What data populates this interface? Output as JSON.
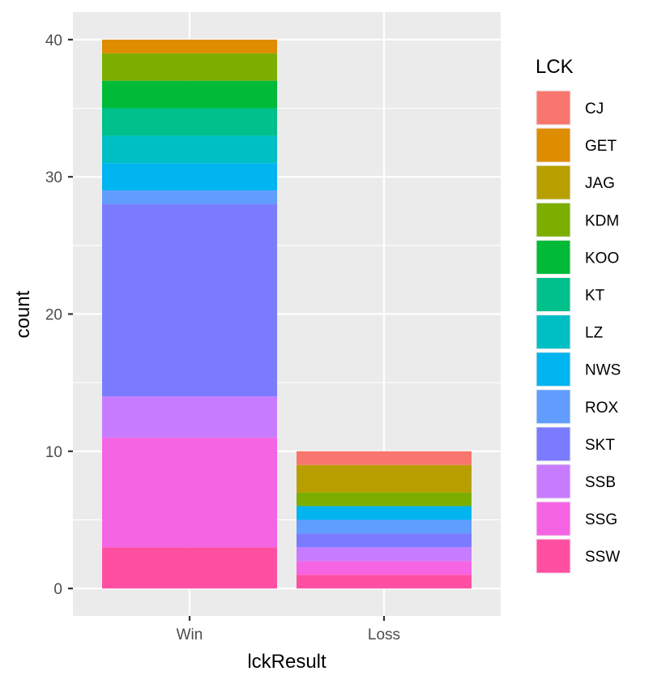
{
  "chart_data": {
    "type": "bar",
    "stacked": true,
    "title": "",
    "xlabel": "lckResult",
    "ylabel": "count",
    "categories": [
      "Win",
      "Loss"
    ],
    "ylim": [
      -2,
      42
    ],
    "yticks": [
      0,
      10,
      20,
      30,
      40
    ],
    "grid": true,
    "legend_title": "LCK",
    "legend_position": "right",
    "series": [
      {
        "name": "CJ",
        "color": "#F8766D",
        "values": [
          0,
          1
        ]
      },
      {
        "name": "GET",
        "color": "#DE8C00",
        "values": [
          1,
          0
        ]
      },
      {
        "name": "JAG",
        "color": "#B79F00",
        "values": [
          0,
          2
        ]
      },
      {
        "name": "KDM",
        "color": "#7CAE00",
        "values": [
          2,
          1
        ]
      },
      {
        "name": "KOO",
        "color": "#00BA38",
        "values": [
          2,
          0
        ]
      },
      {
        "name": "KT",
        "color": "#00C08B",
        "values": [
          2,
          0
        ]
      },
      {
        "name": "LZ",
        "color": "#00BFC4",
        "values": [
          2,
          0
        ]
      },
      {
        "name": "NWS",
        "color": "#00B4F0",
        "values": [
          2,
          1
        ]
      },
      {
        "name": "ROX",
        "color": "#619CFF",
        "values": [
          1,
          1
        ]
      },
      {
        "name": "SKT",
        "color": "#7B7BFF",
        "values": [
          14,
          1
        ]
      },
      {
        "name": "SSB",
        "color": "#C77CFF",
        "values": [
          3,
          1
        ]
      },
      {
        "name": "SSG",
        "color": "#F564E3",
        "values": [
          8,
          1
        ]
      },
      {
        "name": "SSW",
        "color": "#FF4FA3",
        "values": [
          3,
          1
        ]
      }
    ]
  }
}
